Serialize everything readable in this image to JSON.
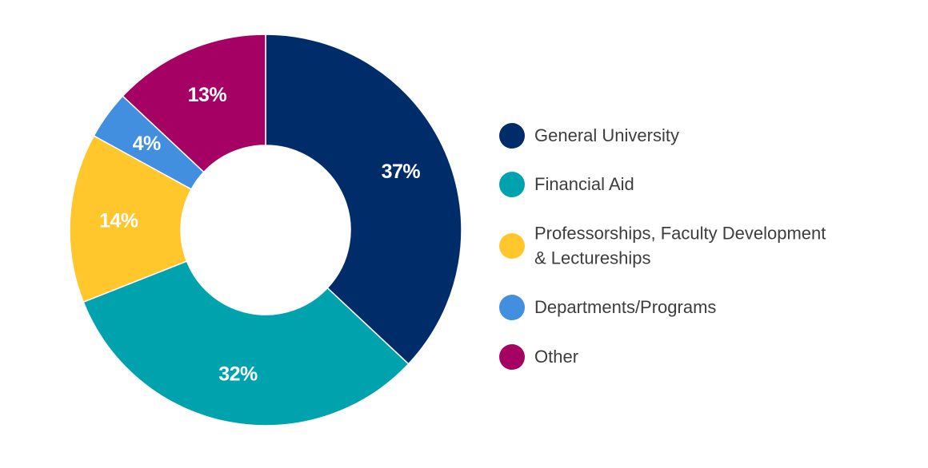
{
  "chart_data": {
    "type": "pie",
    "donut": true,
    "categories": [
      "General University",
      "Financial Aid",
      "Professorships, Faculty Development & Lectureships",
      "Departments/Programs",
      "Other"
    ],
    "values": [
      37,
      32,
      14,
      4,
      13
    ],
    "value_labels": [
      "37%",
      "32%",
      "14%",
      "4%",
      "13%"
    ],
    "colors": [
      "#002D6A",
      "#00A3AD",
      "#FFC72C",
      "#418FDE",
      "#A50064"
    ],
    "legend": {
      "placement": "right",
      "items": [
        {
          "lines": [
            "General University"
          ]
        },
        {
          "lines": [
            "Financial Aid"
          ]
        },
        {
          "lines": [
            "Professorships, Faculty Development",
            "& Lectureships"
          ]
        },
        {
          "lines": [
            "Departments/Programs"
          ]
        },
        {
          "lines": [
            "Other"
          ]
        }
      ]
    },
    "title": "",
    "start_angle": "12 o'clock",
    "direction": "clockwise"
  }
}
